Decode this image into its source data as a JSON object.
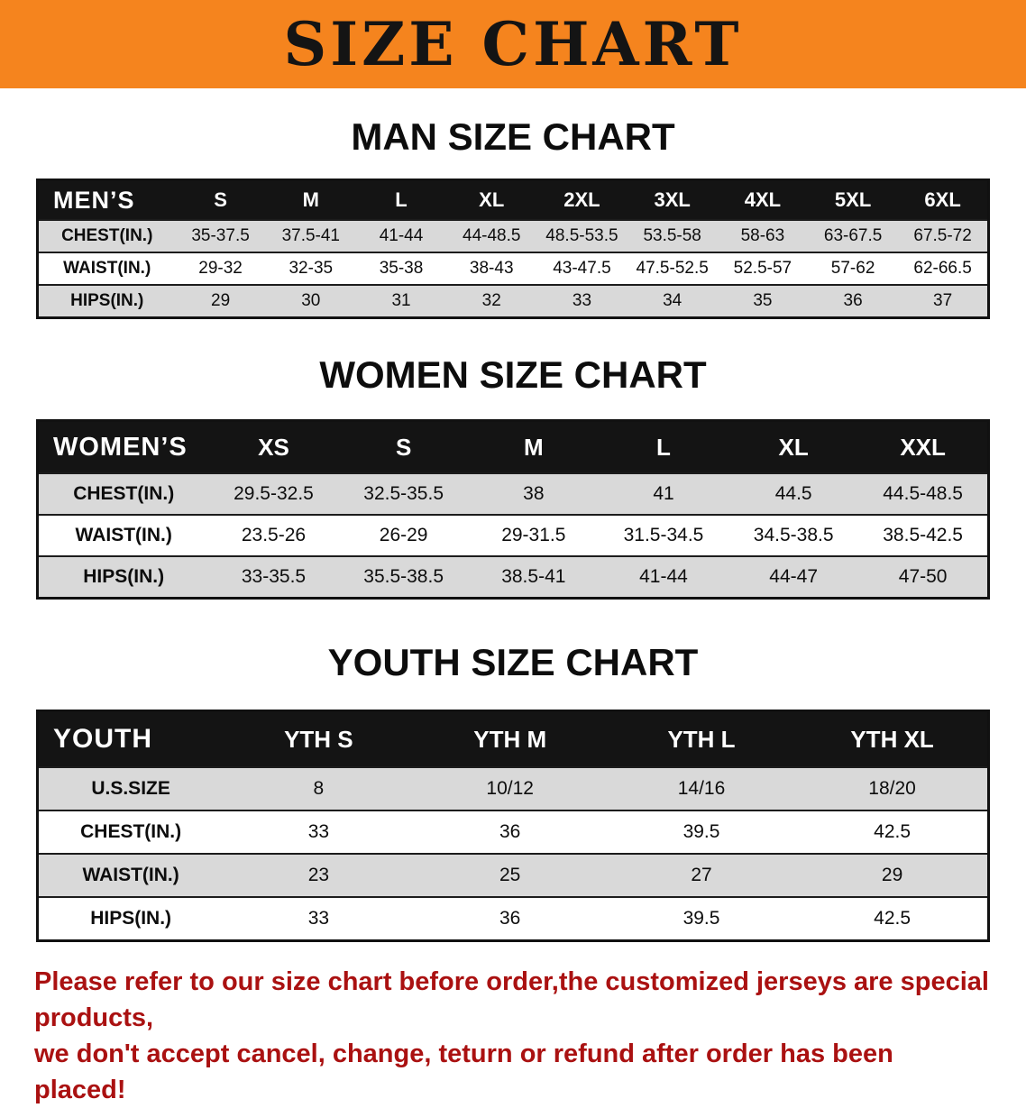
{
  "banner": {
    "title": "SIZE CHART"
  },
  "colors": {
    "banner_bg": "#f5841e",
    "table_header_bg": "#141414",
    "row_shade": "#d9d9d9",
    "footer_text": "#aa1111"
  },
  "sections": {
    "men": {
      "heading": "MAN SIZE CHART",
      "table": {
        "header": [
          "MEN’S",
          "S",
          "M",
          "L",
          "XL",
          "2XL",
          "3XL",
          "4XL",
          "5XL",
          "6XL"
        ],
        "rows": [
          [
            "CHEST(IN.)",
            "35-37.5",
            "37.5-41",
            "41-44",
            "44-48.5",
            "48.5-53.5",
            "53.5-58",
            "58-63",
            "63-67.5",
            "67.5-72"
          ],
          [
            "WAIST(IN.)",
            "29-32",
            "32-35",
            "35-38",
            "38-43",
            "43-47.5",
            "47.5-52.5",
            "52.5-57",
            "57-62",
            "62-66.5"
          ],
          [
            "HIPS(IN.)",
            "29",
            "30",
            "31",
            "32",
            "33",
            "34",
            "35",
            "36",
            "37"
          ]
        ]
      }
    },
    "women": {
      "heading": "WOMEN SIZE CHART",
      "table": {
        "header": [
          "WOMEN’S",
          "XS",
          "S",
          "M",
          "L",
          "XL",
          "XXL"
        ],
        "rows": [
          [
            "CHEST(IN.)",
            "29.5-32.5",
            "32.5-35.5",
            "38",
            "41",
            "44.5",
            "44.5-48.5"
          ],
          [
            "WAIST(IN.)",
            "23.5-26",
            "26-29",
            "29-31.5",
            "31.5-34.5",
            "34.5-38.5",
            "38.5-42.5"
          ],
          [
            "HIPS(IN.)",
            "33-35.5",
            "35.5-38.5",
            "38.5-41",
            "41-44",
            "44-47",
            "47-50"
          ]
        ]
      }
    },
    "youth": {
      "heading": "YOUTH SIZE CHART",
      "table": {
        "header": [
          "YOUTH",
          "YTH S",
          "YTH M",
          "YTH L",
          "YTH XL"
        ],
        "rows": [
          [
            "U.S.SIZE",
            "8",
            "10/12",
            "14/16",
            "18/20"
          ],
          [
            "CHEST(IN.)",
            "33",
            "36",
            "39.5",
            "42.5"
          ],
          [
            "WAIST(IN.)",
            "23",
            "25",
            "27",
            "29"
          ],
          [
            "HIPS(IN.)",
            "33",
            "36",
            "39.5",
            "42.5"
          ]
        ]
      }
    }
  },
  "footer": {
    "line1": "Please refer to our size chart before order,the customized jerseys are special products,",
    "line2": "we don't accept cancel, change, teturn or refund after order has been placed!"
  }
}
